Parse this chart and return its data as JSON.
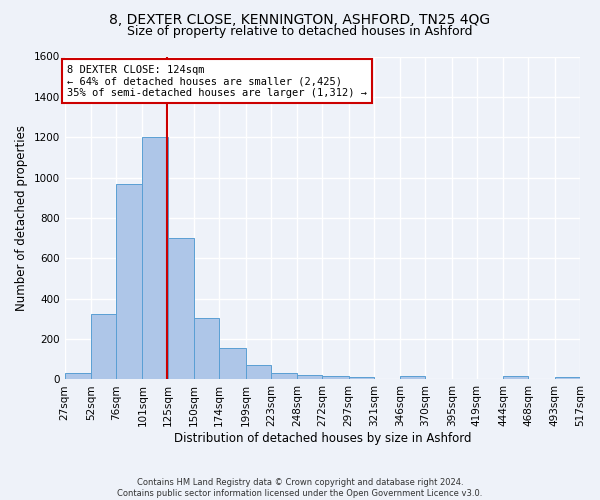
{
  "title1": "8, DEXTER CLOSE, KENNINGTON, ASHFORD, TN25 4QG",
  "title2": "Size of property relative to detached houses in Ashford",
  "xlabel": "Distribution of detached houses by size in Ashford",
  "ylabel": "Number of detached properties",
  "footer": "Contains HM Land Registry data © Crown copyright and database right 2024.\nContains public sector information licensed under the Open Government Licence v3.0.",
  "bin_edges": [
    27,
    52,
    76,
    101,
    125,
    150,
    174,
    199,
    223,
    248,
    272,
    297,
    321,
    346,
    370,
    395,
    419,
    444,
    468,
    493,
    517
  ],
  "bar_heights": [
    30,
    325,
    970,
    1200,
    700,
    305,
    155,
    70,
    30,
    20,
    15,
    10,
    0,
    15,
    0,
    0,
    0,
    15,
    0,
    10
  ],
  "bar_color": "#aec6e8",
  "bar_edgecolor": "#5a9fd4",
  "property_size": 124,
  "vline_color": "#cc0000",
  "annotation_text": "8 DEXTER CLOSE: 124sqm\n← 64% of detached houses are smaller (2,425)\n35% of semi-detached houses are larger (1,312) →",
  "annotation_box_color": "#cc0000",
  "ylim": [
    0,
    1600
  ],
  "yticks": [
    0,
    200,
    400,
    600,
    800,
    1000,
    1200,
    1400,
    1600
  ],
  "bg_color": "#eef2f9",
  "grid_color": "#ffffff",
  "title_fontsize": 10,
  "subtitle_fontsize": 9,
  "tick_label_fontsize": 7.5,
  "ylabel_fontsize": 8.5,
  "xlabel_fontsize": 8.5,
  "annotation_fontsize": 7.5,
  "footer_fontsize": 6.0
}
